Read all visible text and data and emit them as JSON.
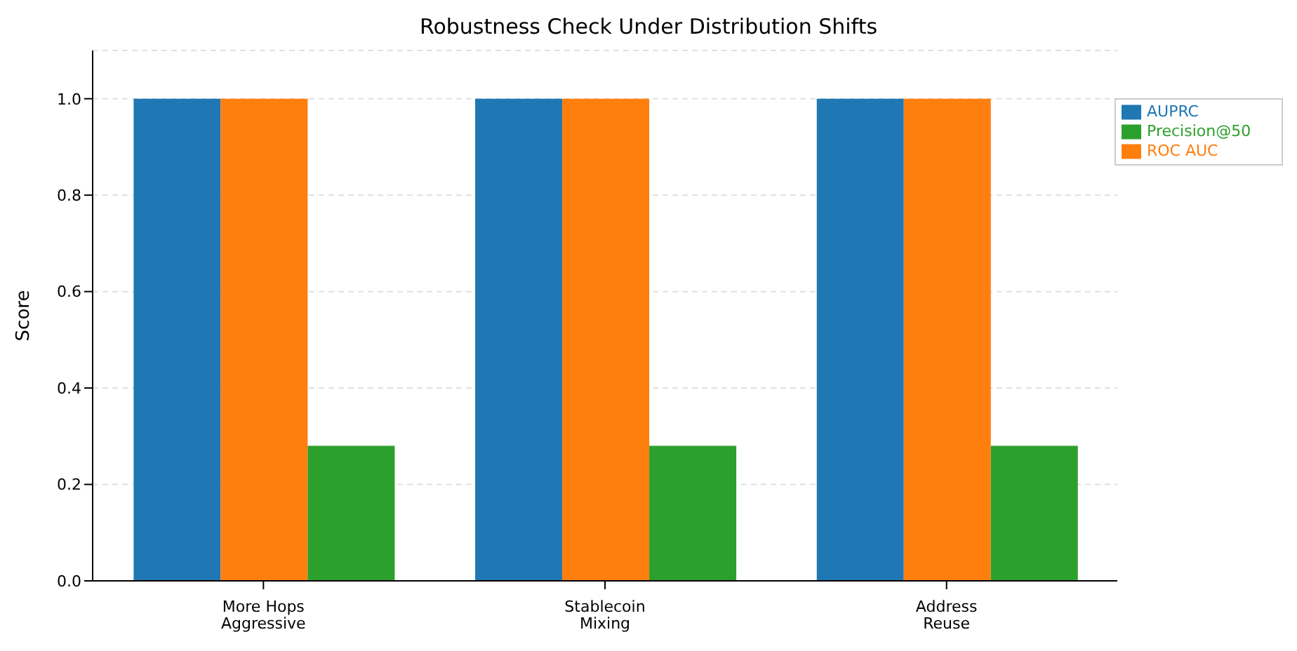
{
  "chart_data": {
    "type": "bar",
    "title": "Robustness Check Under Distribution Shifts",
    "ylabel": "Score",
    "categories": [
      "More Hops\nAggressive",
      "Stablecoin\nMixing",
      "Address\nReuse"
    ],
    "series": [
      {
        "name": "AUPRC",
        "color": "#1f77b4",
        "values": [
          1.0,
          1.0,
          1.0
        ]
      },
      {
        "name": "ROC AUC",
        "color": "#ff7f0e",
        "values": [
          1.0,
          1.0,
          1.0
        ]
      },
      {
        "name": "Precision@50",
        "color": "#2ca02c",
        "values": [
          0.28,
          0.28,
          0.28
        ]
      }
    ],
    "ylim": [
      0,
      1.1
    ],
    "yticks": [
      {
        "value": 0,
        "label": "0.0"
      },
      {
        "value": 0.2,
        "label": "0.2"
      },
      {
        "value": 0.4,
        "label": "0.4"
      },
      {
        "value": 0.6,
        "label": "0.6"
      },
      {
        "value": 0.8,
        "label": "0.8"
      },
      {
        "value": 1.0,
        "label": "1.0"
      }
    ],
    "grid": "y",
    "legend": "top right"
  }
}
